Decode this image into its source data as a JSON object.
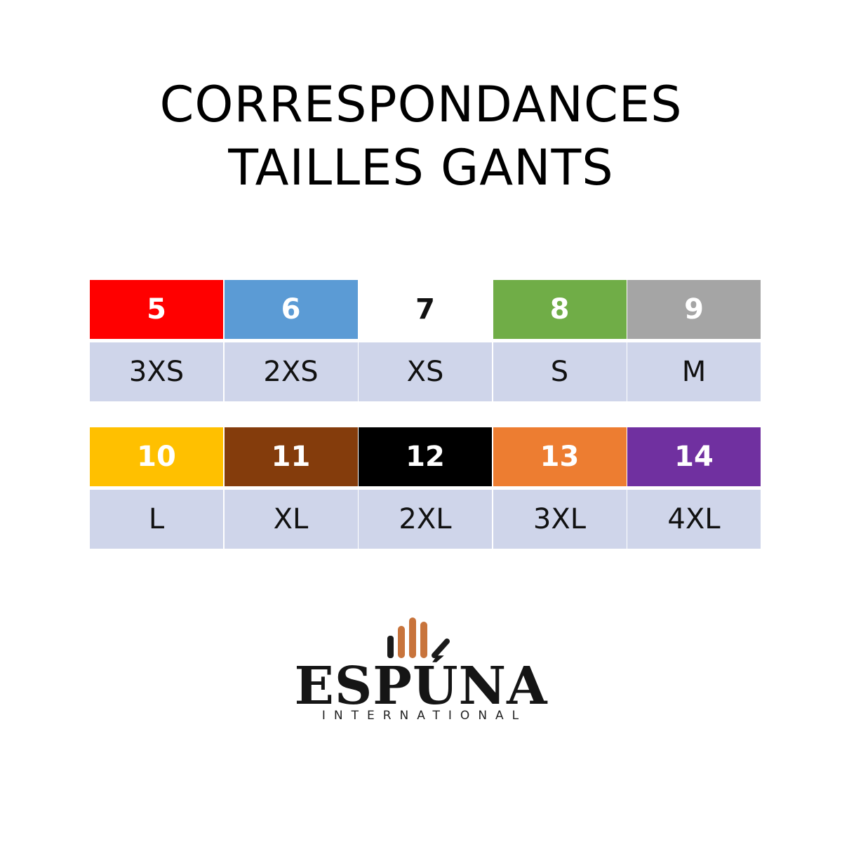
{
  "title": [
    "CORRESPONDANCES",
    "TAILLES GANTS"
  ],
  "tables": [
    {
      "sizes": [
        {
          "number": 5,
          "label": "3XS",
          "color": "#ff0000"
        },
        {
          "number": 6,
          "label": "2XS",
          "color": "#5b9bd5"
        },
        {
          "number": 7,
          "label": "XS",
          "color": "#ffffff"
        },
        {
          "number": 8,
          "label": "S",
          "color": "#70ad47"
        },
        {
          "number": 9,
          "label": "M",
          "color": "#a5a5a5"
        }
      ]
    },
    {
      "sizes": [
        {
          "number": 10,
          "label": "L",
          "color": "#ffc000"
        },
        {
          "number": 11,
          "label": "XL",
          "color": "#843c0c"
        },
        {
          "number": 12,
          "label": "2XL",
          "color": "#000000"
        },
        {
          "number": 13,
          "label": "3XL",
          "color": "#ed7d31"
        },
        {
          "number": 14,
          "label": "4XL",
          "color": "#7030a0"
        }
      ]
    }
  ],
  "logo": {
    "name": "ESPÚNA",
    "tagline": "INTERNATIONAL"
  }
}
